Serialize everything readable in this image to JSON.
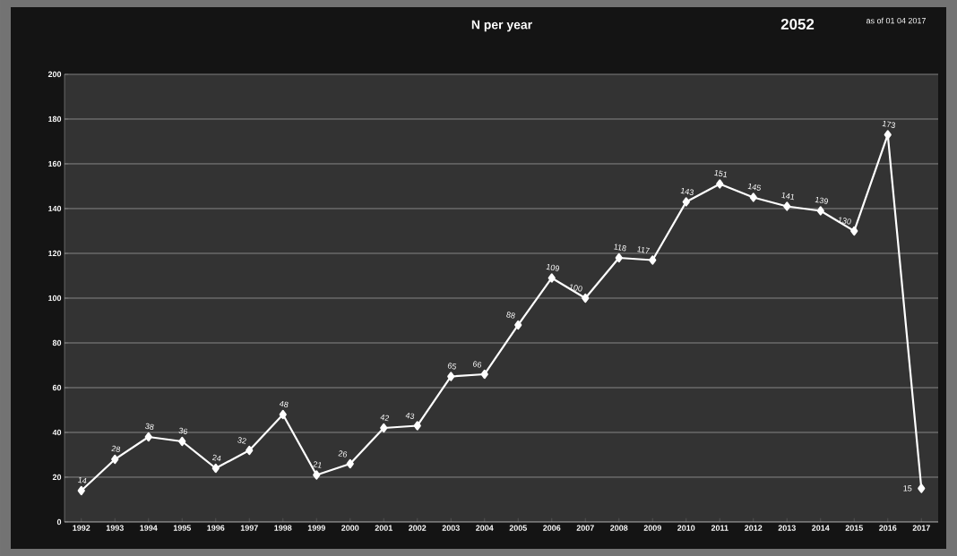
{
  "chart_data": {
    "type": "line",
    "title": "N per year",
    "annotations": [
      "2052",
      "as of 01 04 2017"
    ],
    "categories": [
      "1992",
      "1993",
      "1994",
      "1995",
      "1996",
      "1997",
      "1998",
      "1999",
      "2000",
      "2001",
      "2002",
      "2003",
      "2004",
      "2005",
      "2006",
      "2007",
      "2008",
      "2009",
      "2010",
      "2011",
      "2012",
      "2013",
      "2014",
      "2015",
      "2016",
      "2017"
    ],
    "values": [
      14,
      28,
      38,
      36,
      24,
      32,
      48,
      21,
      26,
      42,
      43,
      65,
      66,
      88,
      109,
      100,
      118,
      117,
      143,
      151,
      145,
      141,
      139,
      130,
      173,
      15
    ],
    "color": "#ffffff",
    "ylim": [
      0,
      200
    ],
    "yticks": [
      0,
      20,
      40,
      60,
      80,
      100,
      120,
      140,
      160,
      180,
      200
    ],
    "grid": "y",
    "marker": "diamond",
    "line_style": "solid",
    "data_labels": true
  }
}
